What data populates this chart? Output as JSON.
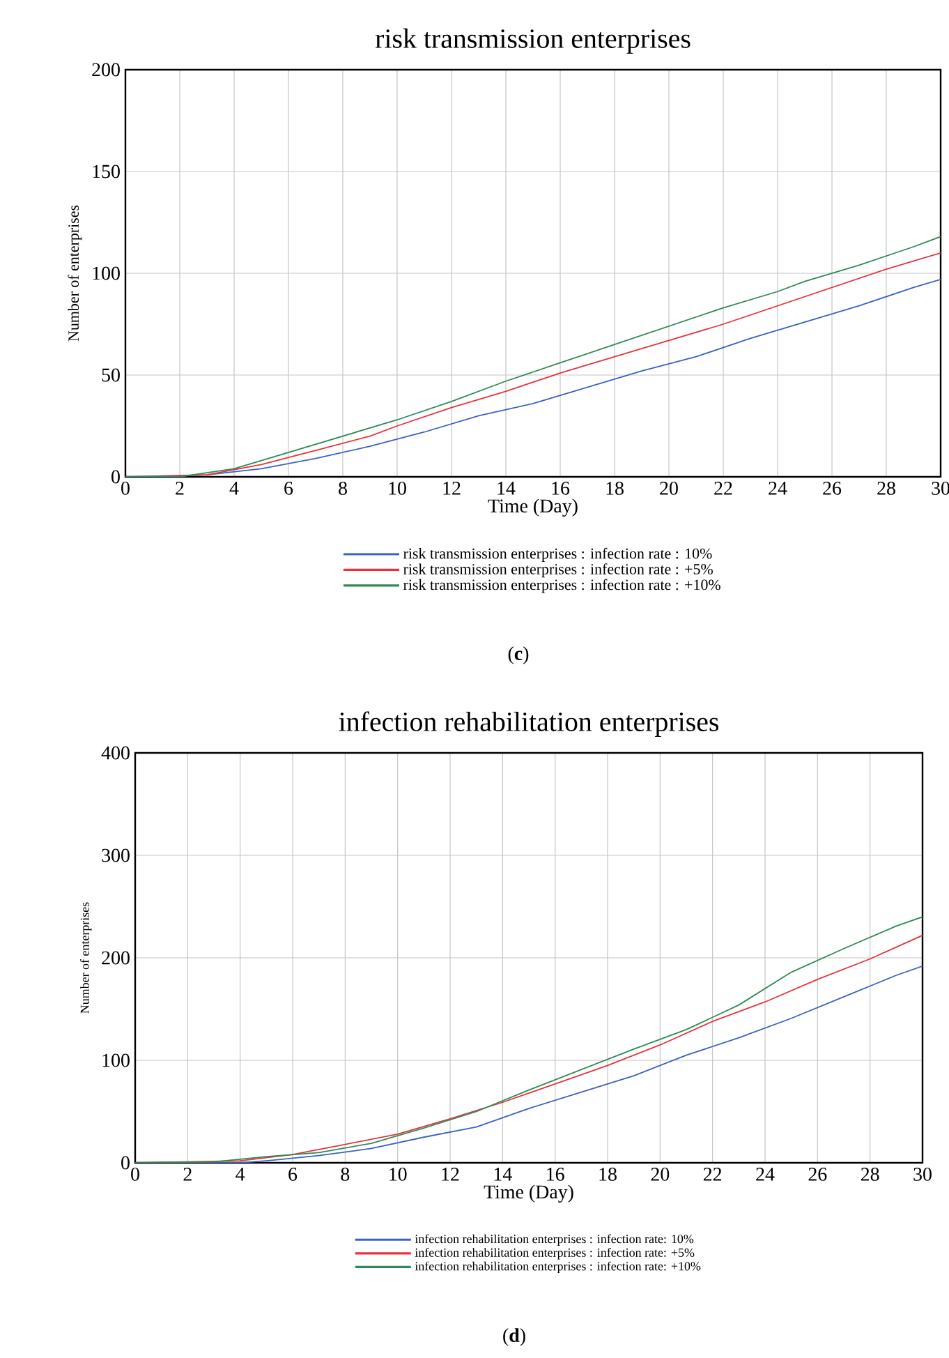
{
  "chart_data": [
    {
      "type": "line",
      "title": "risk transmission enterprises",
      "xlabel": "Time (Day)",
      "ylabel": "Number of enterprises",
      "xlim": [
        0,
        30
      ],
      "ylim": [
        0,
        200
      ],
      "xticks": [
        0,
        2,
        4,
        6,
        8,
        10,
        12,
        14,
        16,
        18,
        20,
        22,
        24,
        26,
        28,
        30
      ],
      "yticks": [
        0,
        50,
        100,
        150,
        200
      ],
      "grid": true,
      "legend": "bottom",
      "annotations": [
        "(**c**)"
      ],
      "series": [
        {
          "name": "risk transmission enterprises : infection rate :  10%",
          "color": "#3a62c4",
          "x": [
            0,
            3,
            5,
            7,
            9,
            11,
            13,
            15,
            17,
            19,
            21,
            23,
            25,
            27,
            29,
            30
          ],
          "values": [
            0,
            1,
            4,
            9,
            15,
            22,
            30,
            36,
            44,
            52,
            59,
            68,
            76,
            84,
            93,
            97
          ]
        },
        {
          "name": "risk transmission enterprises : infection rate :  +5%",
          "color": "#e8333c",
          "x": [
            0,
            1,
            3,
            5,
            7,
            9,
            10,
            12,
            14,
            16,
            18,
            20,
            22,
            24,
            26,
            28,
            30
          ],
          "values": [
            0,
            0,
            1,
            6,
            13,
            20,
            25,
            34,
            42,
            51,
            59,
            67,
            75,
            84,
            93,
            102,
            110
          ]
        },
        {
          "name": "risk transmission enterprises : infection rate :  +10%",
          "color": "#2e8b57",
          "x": [
            0,
            2,
            3,
            4,
            6,
            8,
            10,
            12,
            14,
            16,
            18,
            20,
            22,
            24,
            25,
            27,
            29,
            30
          ],
          "values": [
            0,
            0,
            2,
            4,
            12,
            20,
            28,
            37,
            47,
            56,
            65,
            74,
            83,
            91,
            96,
            104,
            113,
            118
          ]
        }
      ]
    },
    {
      "type": "line",
      "title": "infection rehabilitation enterprises",
      "xlabel": "Time (Day)",
      "ylabel": "Number of enterprises",
      "xlim": [
        0,
        30
      ],
      "ylim": [
        0,
        400
      ],
      "xticks": [
        0,
        2,
        4,
        6,
        8,
        10,
        12,
        14,
        16,
        18,
        20,
        22,
        24,
        26,
        28,
        30
      ],
      "yticks": [
        0,
        100,
        200,
        300,
        400
      ],
      "grid": true,
      "legend": "bottom",
      "annotations": [
        "(**d**)"
      ],
      "series": [
        {
          "name": "infection rehabilitation enterprises : infection rate: 10%",
          "color": "#3a62c4",
          "x": [
            0,
            4,
            5,
            7,
            9,
            11,
            13,
            15,
            17,
            19,
            21,
            23,
            25,
            27,
            29,
            30
          ],
          "values": [
            0,
            0,
            2,
            7,
            14,
            25,
            35,
            53,
            69,
            85,
            105,
            122,
            141,
            162,
            183,
            192
          ]
        },
        {
          "name": "infection rehabilitation enterprises : infection rate: +5%",
          "color": "#e8333c",
          "x": [
            0,
            4,
            6,
            8,
            10,
            12,
            14,
            16,
            18,
            20,
            22,
            24,
            26,
            28,
            30
          ],
          "values": [
            0,
            2,
            8,
            18,
            28,
            43,
            59,
            77,
            95,
            115,
            138,
            157,
            179,
            199,
            222
          ]
        },
        {
          "name": "infection rehabilitation enterprises : infection rate: +10%",
          "color": "#2e8b57",
          "x": [
            0,
            3,
            5,
            7,
            9,
            11,
            13,
            15,
            17,
            19,
            21,
            23,
            25,
            27,
            29,
            30
          ],
          "values": [
            0,
            1,
            6,
            10,
            19,
            34,
            50,
            71,
            91,
            111,
            130,
            154,
            186,
            209,
            231,
            240
          ]
        }
      ]
    }
  ]
}
